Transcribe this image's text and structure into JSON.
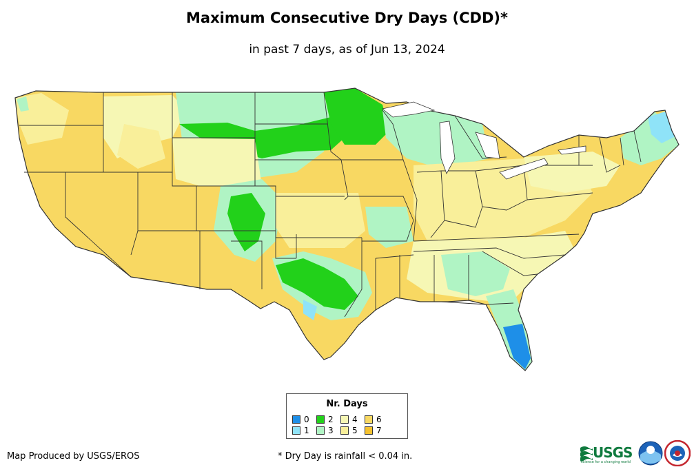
{
  "title": "Maximum Consecutive Dry Days (CDD)*",
  "subtitle": "in past 7 days, as of Jun 13, 2024",
  "legend": {
    "title": "Nr. Days",
    "items": [
      {
        "label": "0",
        "color": "#1e8fe8"
      },
      {
        "label": "1",
        "color": "#8fe3f8"
      },
      {
        "label": "2",
        "color": "#22d11a"
      },
      {
        "label": "3",
        "color": "#b0f4c4"
      },
      {
        "label": "4",
        "color": "#f6f7b4"
      },
      {
        "label": "5",
        "color": "#f9ef9a"
      },
      {
        "label": "6",
        "color": "#f8d862"
      },
      {
        "label": "7",
        "color": "#f6c22e"
      }
    ]
  },
  "credit": "Map Produced by USGS/EROS",
  "footnote": "* Dry Day is rainfall < 0.04 in.",
  "logos": {
    "usgs": "USGS",
    "usgs_tagline": "science for a changing world"
  },
  "colors": {
    "state_border": "#333333",
    "background": "#ffffff"
  }
}
